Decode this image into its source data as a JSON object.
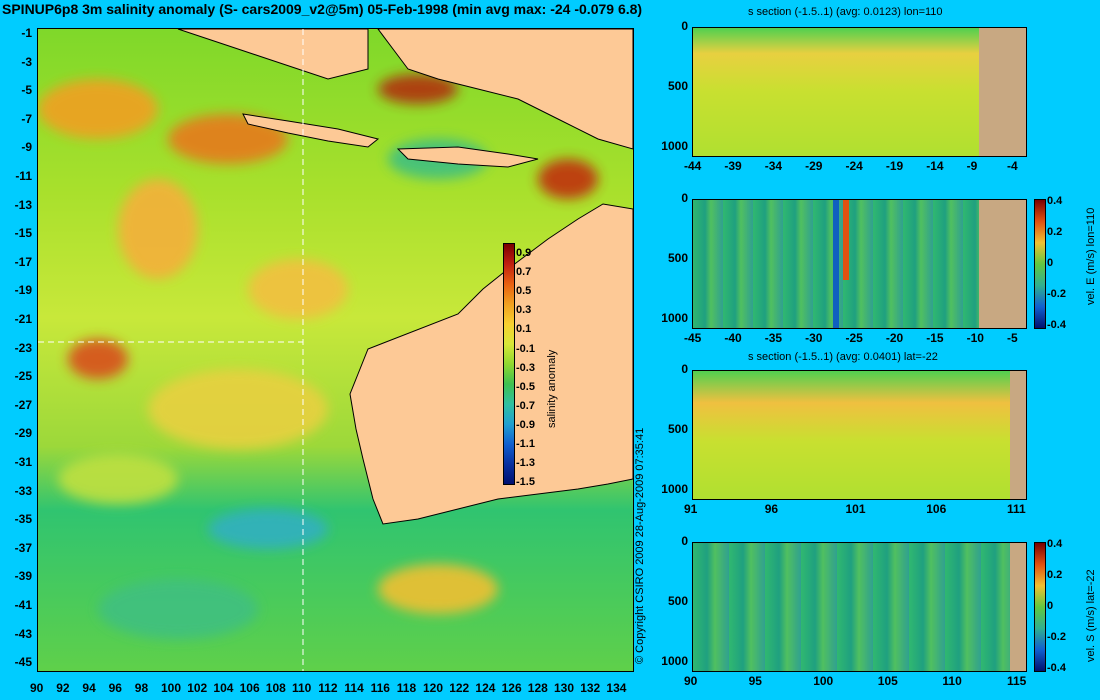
{
  "title": "SPINUP6p8 3m salinity anomaly (S- cars2009_v2@5m) 05-Feb-1998 (min avg max: -24 -0.079 6.8)",
  "copyright": "© Copyright CSIRO 2009   28-Aug-2009 07:35:41",
  "colors": {
    "background": "#00ccff",
    "land": "#fdc996",
    "section_land": "#c8a882"
  },
  "map": {
    "lon_ticks": [
      "90",
      "92",
      "94",
      "96",
      "98",
      "100",
      "102",
      "104",
      "106",
      "108",
      "110",
      "112",
      "114",
      "116",
      "118",
      "120",
      "122",
      "124",
      "126",
      "128",
      "130",
      "132",
      "134"
    ],
    "lat_ticks": [
      "-1",
      "-3",
      "-5",
      "-7",
      "-9",
      "-11",
      "-13",
      "-15",
      "-17",
      "-19",
      "-21",
      "-23",
      "-25",
      "-27",
      "-29",
      "-31",
      "-33",
      "-35",
      "-37",
      "-39",
      "-41",
      "-43",
      "-45"
    ],
    "colorbar_label": "salinity anomaly",
    "colorbar_ticks": [
      "0.9",
      "0.7",
      "0.5",
      "0.3",
      "0.1",
      "-0.1",
      "-0.3",
      "-0.5",
      "-0.7",
      "-0.9",
      "-1.1",
      "-1.3",
      "-1.5"
    ],
    "crosshair": {
      "lon": 110,
      "lat": -22
    }
  },
  "panels": [
    {
      "title": "s section (-1.5..1) (avg: 0.0123) lon=110",
      "x_ticks": [
        "-44",
        "-39",
        "-34",
        "-29",
        "-24",
        "-19",
        "-14",
        "-9",
        "-4"
      ],
      "y_ticks": [
        "0",
        "500",
        "1000"
      ]
    },
    {
      "title": "",
      "x_ticks": [
        "-45",
        "-40",
        "-35",
        "-30",
        "-25",
        "-20",
        "-15",
        "-10",
        "-5"
      ],
      "y_ticks": [
        "0",
        "500",
        "1000"
      ],
      "colorbar_label": "vel. E (m/s) lon=110",
      "colorbar_ticks": [
        "0.4",
        "0.2",
        "0",
        "-0.2",
        "-0.4"
      ]
    },
    {
      "title": "s section (-1.5..1) (avg: 0.0401) lat=-22",
      "x_ticks": [
        "91",
        "96",
        "101",
        "106",
        "111"
      ],
      "y_ticks": [
        "0",
        "500",
        "1000"
      ]
    },
    {
      "title": "",
      "x_ticks": [
        "90",
        "95",
        "100",
        "105",
        "110",
        "115"
      ],
      "y_ticks": [
        "0",
        "500",
        "1000"
      ],
      "colorbar_label": "vel. S (m/s) lat=-22",
      "colorbar_ticks": [
        "0.4",
        "0.2",
        "0",
        "-0.2",
        "-0.4"
      ]
    }
  ]
}
